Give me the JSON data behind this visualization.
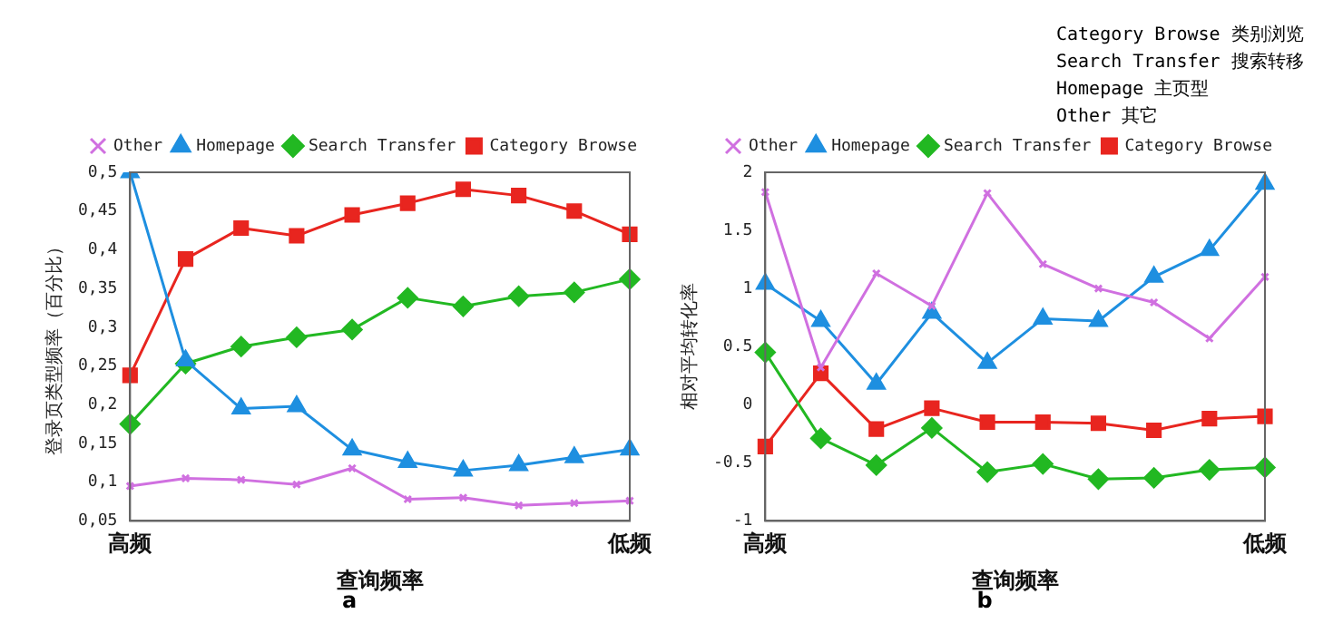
{
  "chart_data": [
    {
      "type": "line",
      "xlabel": "查询频率",
      "ylabel": "登录页类型频率（百分比）",
      "categories": [
        "高频",
        null,
        null,
        null,
        null,
        null,
        null,
        null,
        null,
        "低频"
      ],
      "ylim": [
        0.05,
        0.5
      ],
      "yticks": [
        {
          "value": 0.05,
          "label": "0,05"
        },
        {
          "value": 0.1,
          "label": "0,1"
        },
        {
          "value": 0.15,
          "label": "0,15"
        },
        {
          "value": 0.2,
          "label": "0,2"
        },
        {
          "value": 0.25,
          "label": "0,25"
        },
        {
          "value": 0.3,
          "label": "0,3"
        },
        {
          "value": 0.35,
          "label": "0,35"
        },
        {
          "value": 0.4,
          "label": "0,4"
        },
        {
          "value": 0.45,
          "label": "0,45"
        },
        {
          "value": 0.5,
          "label": "0,5"
        }
      ],
      "grid": false,
      "legend": "top right",
      "line_style": "solid",
      "annotations": [
        "a"
      ],
      "series": [
        {
          "name": "Category Browse",
          "color": "#e8251f",
          "marker": "square",
          "values": [
            0.238,
            0.388,
            0.428,
            0.418,
            0.445,
            0.46,
            0.478,
            0.47,
            0.45,
            0.42
          ]
        },
        {
          "name": "Search Transfer",
          "color": "#22b822",
          "marker": "diamond",
          "values": [
            0.175,
            0.253,
            0.275,
            0.287,
            0.297,
            0.338,
            0.327,
            0.34,
            0.345,
            0.362
          ]
        },
        {
          "name": "Homepage",
          "color": "#1e8fe0",
          "marker": "triangle",
          "values": [
            0.5,
            0.257,
            0.195,
            0.198,
            0.142,
            0.126,
            0.115,
            0.122,
            0.132,
            0.142
          ]
        },
        {
          "name": "Other",
          "color": "#d070e0",
          "marker": "cross",
          "values": [
            0.095,
            0.105,
            0.103,
            0.097,
            0.118,
            0.078,
            0.08,
            0.07,
            0.073,
            0.076
          ]
        }
      ]
    },
    {
      "type": "line",
      "xlabel": "查询频率",
      "ylabel": "相对平均转化率",
      "categories": [
        "高频",
        null,
        null,
        null,
        null,
        null,
        null,
        null,
        null,
        "低频"
      ],
      "ylim": [
        -1,
        2
      ],
      "yticks": [
        -1,
        -0.5,
        0,
        0.5,
        1,
        1.5,
        2
      ],
      "grid": false,
      "legend": "top right",
      "line_style": "solid",
      "annotations": [
        "b"
      ],
      "series": [
        {
          "name": "Category Browse",
          "color": "#e8251f",
          "marker": "square",
          "values": [
            -0.36,
            0.27,
            -0.21,
            -0.03,
            -0.15,
            -0.15,
            -0.16,
            -0.22,
            -0.12,
            -0.1
          ]
        },
        {
          "name": "Search Transfer",
          "color": "#22b822",
          "marker": "diamond",
          "values": [
            0.45,
            -0.29,
            -0.52,
            -0.2,
            -0.58,
            -0.51,
            -0.64,
            -0.63,
            -0.56,
            -0.54
          ]
        },
        {
          "name": "Homepage",
          "color": "#1e8fe0",
          "marker": "triangle",
          "values": [
            1.04,
            0.72,
            0.18,
            0.79,
            0.36,
            0.74,
            0.72,
            1.1,
            1.33,
            1.9
          ]
        },
        {
          "name": "Other",
          "color": "#d070e0",
          "marker": "cross",
          "values": [
            1.83,
            0.32,
            1.13,
            0.85,
            1.82,
            1.21,
            1.0,
            0.88,
            0.57,
            1.1
          ]
        }
      ]
    },
    {
      "type": "other",
      "annotations": [
        "Category Browse 类别浏览",
        "Search Transfer 搜索转移",
        "Homepage 主页型",
        "Other 其它"
      ]
    }
  ]
}
